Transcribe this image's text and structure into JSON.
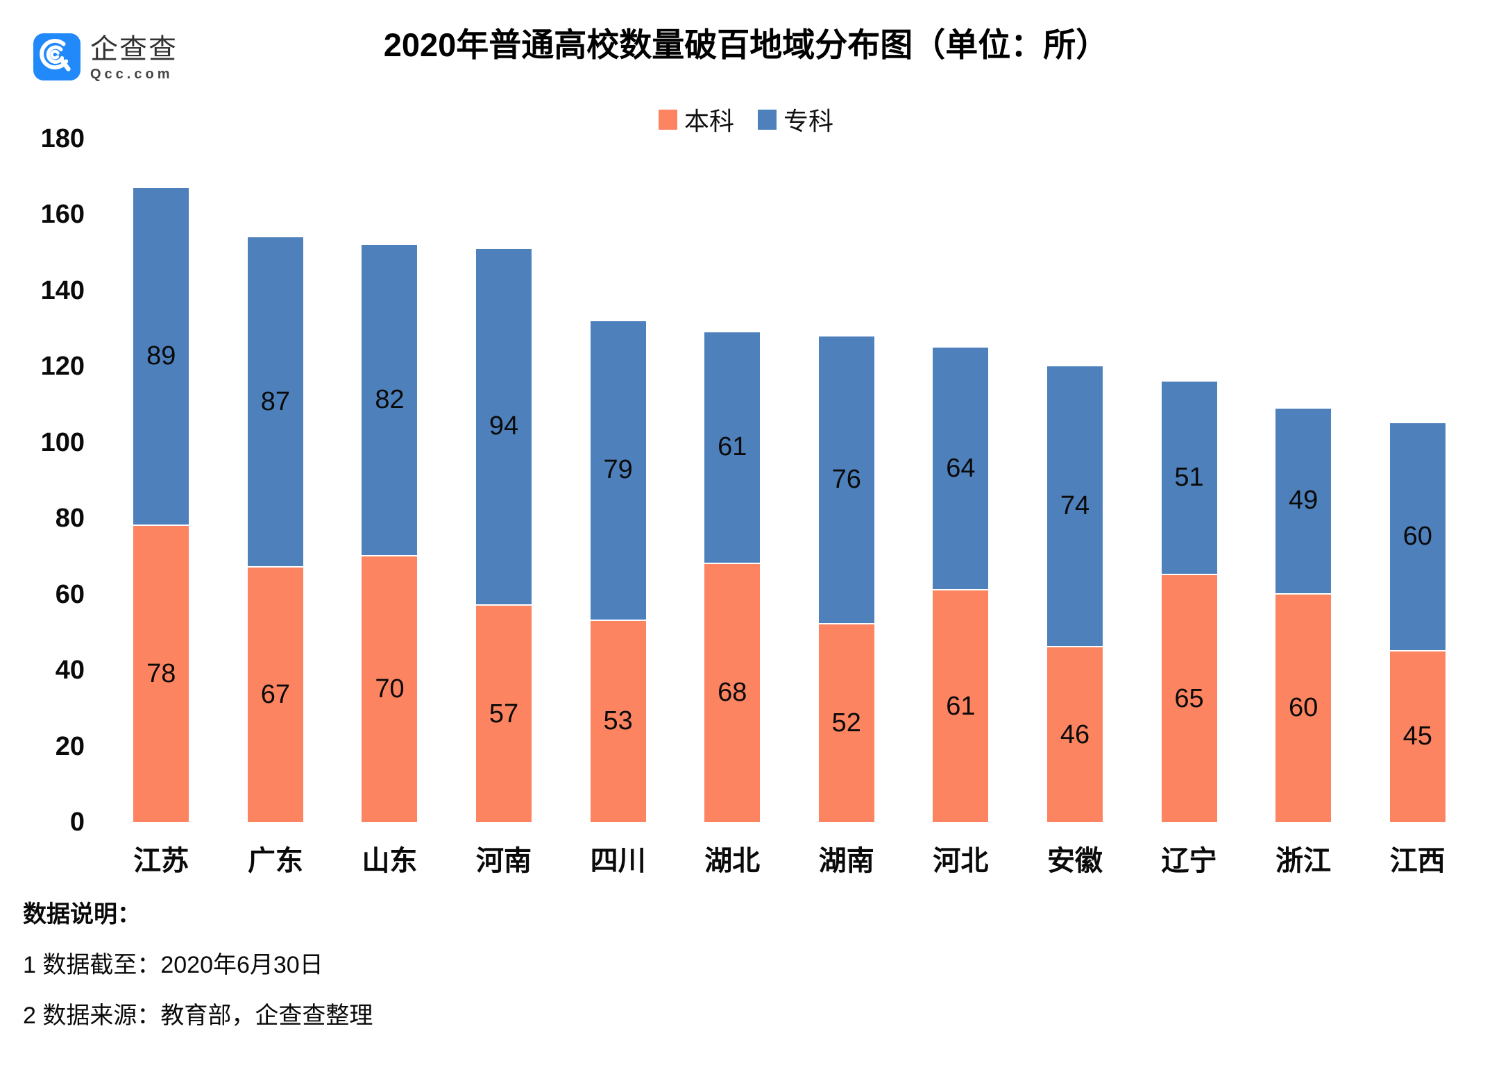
{
  "logo": {
    "name": "企查查",
    "domain": "Qcc.com",
    "icon_color": "#2289FB"
  },
  "title": "2020年普通高校数量破百地域分布图（单位：所）",
  "legend": [
    {
      "label": "本科",
      "color": "#FC8461"
    },
    {
      "label": "专科",
      "color": "#4E81BC"
    }
  ],
  "chart_data": {
    "type": "bar",
    "stacked": true,
    "title": "2020年普通高校数量破百地域分布图（单位：所）",
    "categories": [
      "江苏",
      "广东",
      "山东",
      "河南",
      "四川",
      "湖北",
      "湖南",
      "河北",
      "安徽",
      "辽宁",
      "浙江",
      "江西"
    ],
    "series": [
      {
        "name": "本科",
        "color": "#FC8461",
        "values": [
          78,
          67,
          70,
          57,
          53,
          68,
          52,
          61,
          46,
          65,
          60,
          45
        ]
      },
      {
        "name": "专科",
        "color": "#4E81BC",
        "values": [
          89,
          87,
          82,
          94,
          79,
          61,
          76,
          64,
          74,
          51,
          49,
          60
        ]
      }
    ],
    "ylim": [
      0,
      180
    ],
    "yticks": [
      0,
      20,
      40,
      60,
      80,
      100,
      120,
      140,
      160,
      180
    ],
    "grid": false,
    "axis_lines": false,
    "legend_position": "top-center",
    "value_labels": "inside-center"
  },
  "notes": {
    "heading": "数据说明：",
    "lines": [
      "1 数据截至：2020年6月30日",
      "2 数据来源：教育部，企查查整理"
    ]
  }
}
